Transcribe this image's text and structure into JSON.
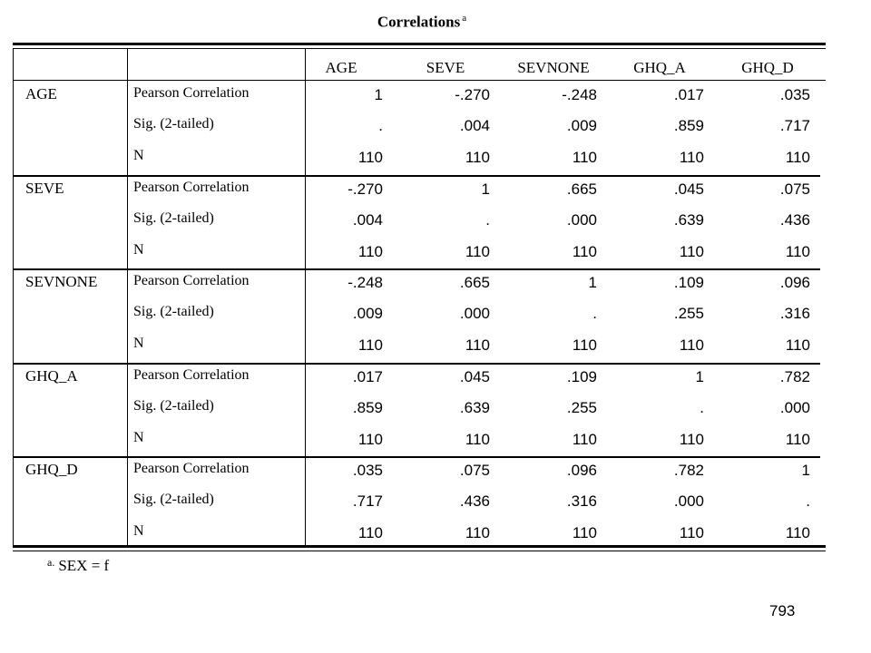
{
  "title": "Correlations",
  "title_footnote_mark": "a",
  "columns": [
    "AGE",
    "SEVE",
    "SEVNONE",
    "GHQ_A",
    "GHQ_D"
  ],
  "stat_labels": [
    "Pearson Correlation",
    "Sig. (2-tailed)",
    "N"
  ],
  "rows": [
    {
      "variable": "AGE",
      "pearson": [
        "1",
        "-.270",
        "-.248",
        ".017",
        ".035"
      ],
      "sig": [
        ".",
        ".004",
        ".009",
        ".859",
        ".717"
      ],
      "n": [
        "110",
        "110",
        "110",
        "110",
        "110"
      ]
    },
    {
      "variable": "SEVE",
      "pearson": [
        "-.270",
        "1",
        ".665",
        ".045",
        ".075"
      ],
      "sig": [
        ".004",
        ".",
        ".000",
        ".639",
        ".436"
      ],
      "n": [
        "110",
        "110",
        "110",
        "110",
        "110"
      ]
    },
    {
      "variable": "SEVNONE",
      "pearson": [
        "-.248",
        ".665",
        "1",
        ".109",
        ".096"
      ],
      "sig": [
        ".009",
        ".000",
        ".",
        ".255",
        ".316"
      ],
      "n": [
        "110",
        "110",
        "110",
        "110",
        "110"
      ]
    },
    {
      "variable": "GHQ_A",
      "pearson": [
        ".017",
        ".045",
        ".109",
        "1",
        ".782"
      ],
      "sig": [
        ".859",
        ".639",
        ".255",
        ".",
        ".000"
      ],
      "n": [
        "110",
        "110",
        "110",
        "110",
        "110"
      ]
    },
    {
      "variable": "GHQ_D",
      "pearson": [
        ".035",
        ".075",
        ".096",
        ".782",
        "1"
      ],
      "sig": [
        ".717",
        ".436",
        ".316",
        ".000",
        "."
      ],
      "n": [
        "110",
        "110",
        "110",
        "110",
        "110"
      ]
    }
  ],
  "footnote": {
    "mark": "a.",
    "text": "SEX = f"
  },
  "page_number": "793"
}
